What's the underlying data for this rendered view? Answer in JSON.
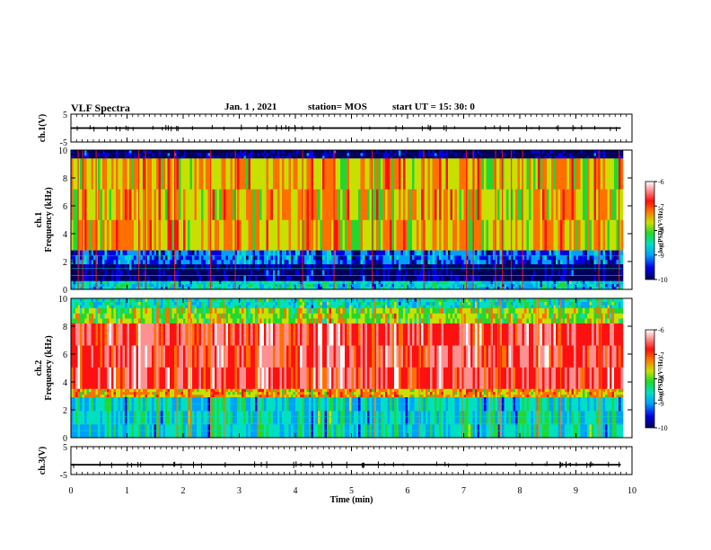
{
  "header": {
    "title": "VLF Spectra",
    "date": "Jan. 1 , 2021",
    "station": "station= MOS",
    "start": "start UT = 15: 30: 0"
  },
  "colors": {
    "scale": [
      "#00005a",
      "#0000e6",
      "#00a0ff",
      "#00e0c0",
      "#22d830",
      "#c8e000",
      "#ff7000",
      "#ff1010",
      "#ff9090",
      "#ffffff"
    ]
  },
  "chart_data": [
    {
      "type": "line",
      "panel": "ch1-voltage",
      "ylabel": "ch.1(V)",
      "ylim": [
        -5,
        5
      ],
      "yticks": [
        "5",
        "-5"
      ],
      "series": [
        {
          "x": [
            0,
            9.8
          ],
          "values": [
            0,
            0
          ]
        }
      ]
    },
    {
      "type": "heatmap",
      "panel": "ch1-spectrogram",
      "ylabel_line1": "ch.1",
      "ylabel_line2": "Frequency (kHz)",
      "ylim": [
        0,
        10
      ],
      "yticks": [
        "0",
        "2",
        "4",
        "6",
        "8",
        "10"
      ],
      "xlim": [
        0,
        10
      ],
      "colorbar": {
        "label": "log(PSD)(V²/Hz)",
        "range": [
          -10,
          -6
        ],
        "ticks": [
          "-6",
          "-7",
          "-8",
          "-9",
          "-10"
        ]
      },
      "bands_khz": [
        {
          "from": 9.4,
          "to": 10,
          "level": -10
        },
        {
          "from": 2.8,
          "to": 9.4,
          "level": -7.6
        },
        {
          "from": 1.8,
          "to": 2.8,
          "level": -9.3
        },
        {
          "from": 0.6,
          "to": 1.8,
          "level": -10
        },
        {
          "from": 0,
          "to": 0.6,
          "level": -8.8
        }
      ]
    },
    {
      "type": "heatmap",
      "panel": "ch2-spectrogram",
      "ylabel_line1": "ch.2",
      "ylabel_line2": "Frequency (kHz)",
      "ylim": [
        0,
        10
      ],
      "yticks": [
        "0",
        "2",
        "4",
        "6",
        "8",
        "10"
      ],
      "xlim": [
        0,
        10
      ],
      "colorbar": {
        "label": "log(PSD)(V²/Hz)",
        "range": [
          -10,
          -6
        ],
        "ticks": [
          "-6",
          "-7",
          "-8",
          "-9",
          "-10"
        ]
      },
      "bands_khz": [
        {
          "from": 9.3,
          "to": 10,
          "level": -8.6
        },
        {
          "from": 8.2,
          "to": 9.3,
          "level": -7.9
        },
        {
          "from": 3.5,
          "to": 8.2,
          "level": -6.7
        },
        {
          "from": 2.9,
          "to": 3.5,
          "level": -7.5
        },
        {
          "from": 0,
          "to": 2.9,
          "level": -8.7
        }
      ]
    },
    {
      "type": "line",
      "panel": "ch3-voltage",
      "ylabel": "ch.3(V)",
      "ylim": [
        -5,
        5
      ],
      "yticks": [
        "5",
        "-5"
      ],
      "series": [
        {
          "x": [
            0,
            9.8
          ],
          "values": [
            -1.5,
            -1.5
          ]
        }
      ]
    }
  ],
  "xaxis": {
    "label": "Time (min)",
    "ticks": [
      "0",
      "1",
      "2",
      "3",
      "4",
      "5",
      "6",
      "7",
      "8",
      "9",
      "10"
    ]
  }
}
